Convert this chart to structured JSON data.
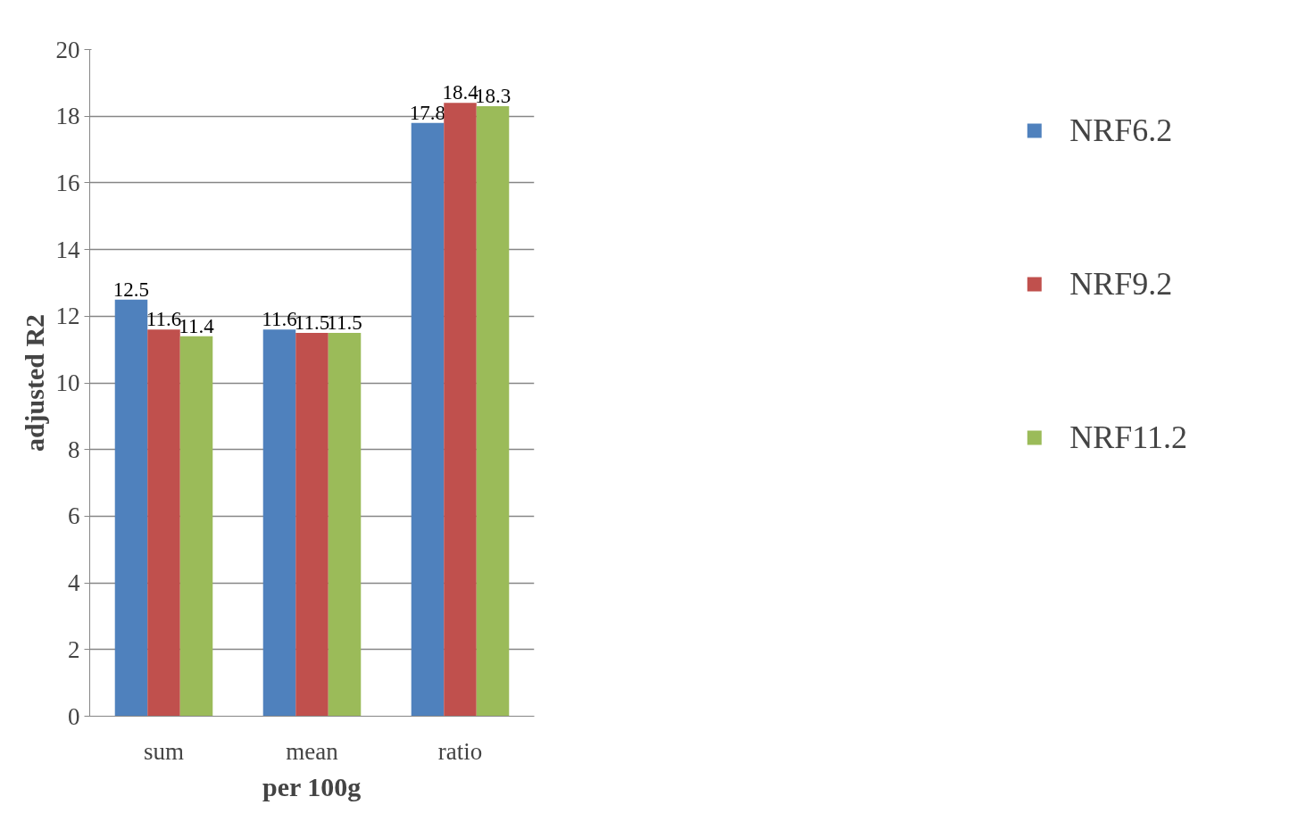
{
  "chart_data": {
    "type": "bar",
    "xlabel": "per 100g",
    "ylabel": "adjusted R2",
    "categories": [
      "sum",
      "mean",
      "ratio"
    ],
    "series": [
      {
        "name": "NRF6.2",
        "color": "#4f81bd",
        "values": [
          12.5,
          11.6,
          17.8
        ]
      },
      {
        "name": "NRF9.2",
        "color": "#c0504d",
        "values": [
          11.6,
          11.5,
          18.4
        ]
      },
      {
        "name": "NRF11.2",
        "color": "#9bbb59",
        "values": [
          11.4,
          11.5,
          18.3
        ]
      }
    ],
    "ylim": [
      0,
      20
    ],
    "yticks": [
      0,
      2,
      4,
      6,
      8,
      10,
      12,
      14,
      16,
      18,
      20
    ],
    "grid": "y",
    "legend": "right",
    "data_labels": true
  }
}
